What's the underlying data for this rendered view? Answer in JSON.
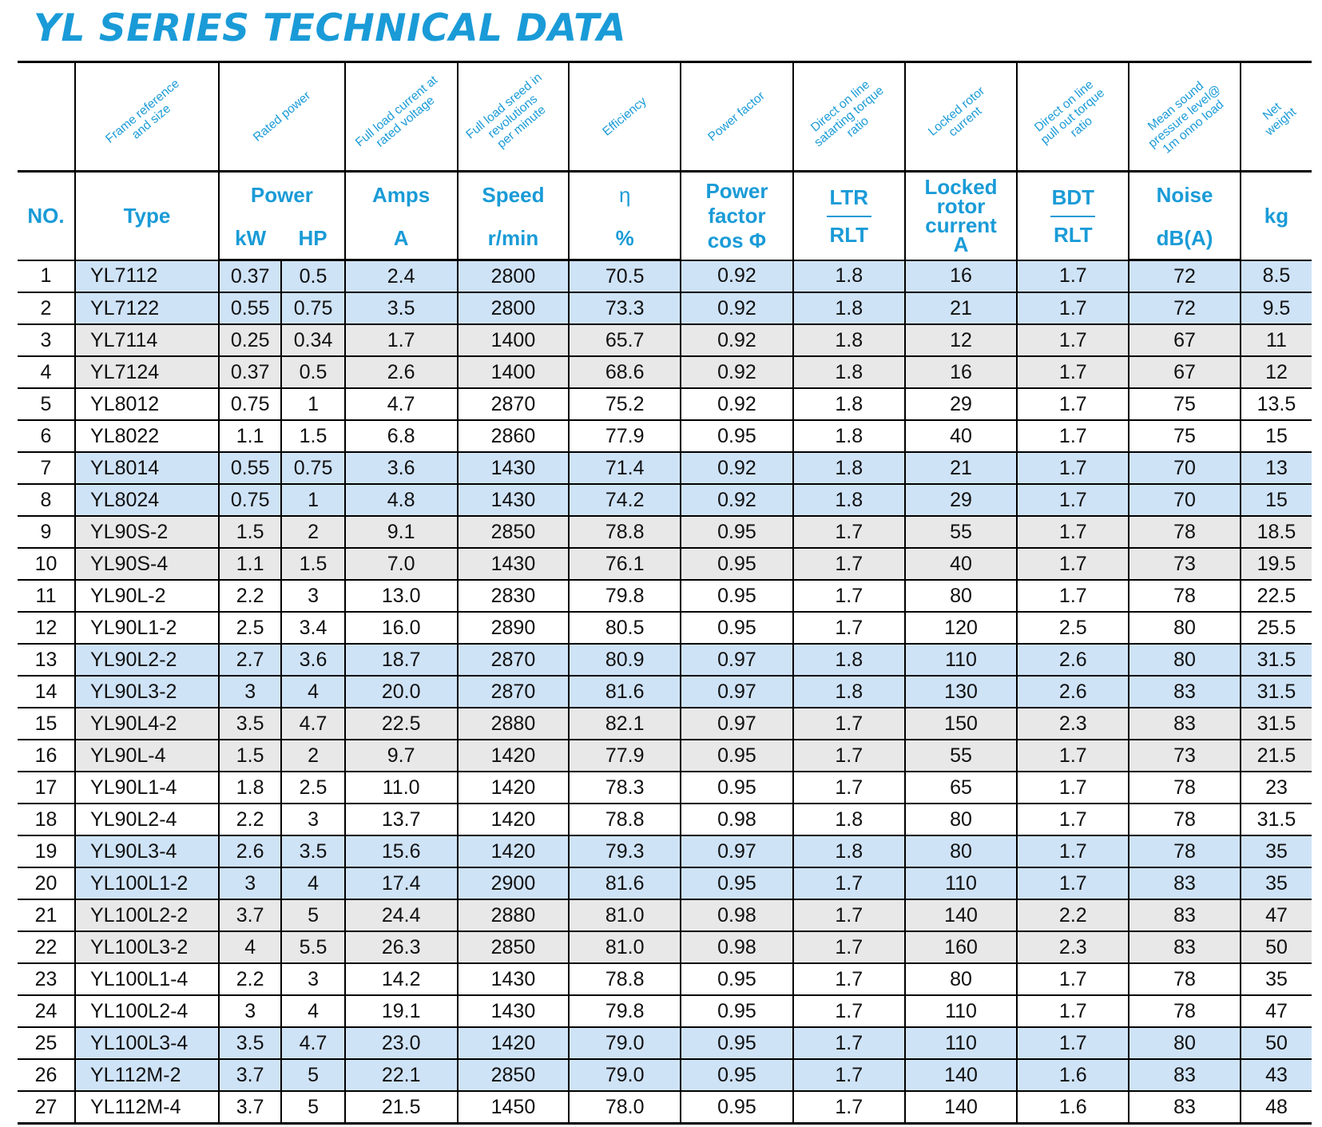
{
  "title": "YL SERIES TECHNICAL DATA",
  "header": {
    "rotated": [
      "",
      "Frame reference\nand size",
      "Rated power",
      "Full load current at\nrated voltage",
      "Full load sreed in\nrevolutions\nper minute",
      "Efficiency",
      "Power factor",
      "Direct on line\nsatarting torque\nratio",
      "Locked rotor\ncurrent",
      "Direct on line\npull out torque\nratio",
      "Mean sound\npressure level@\n1m onno load",
      "Net\nweight"
    ],
    "no": "NO.",
    "type": "Type",
    "power": "Power",
    "kw": "kW",
    "hp": "HP",
    "amps": "Amps",
    "amps_unit": "A",
    "speed": "Speed",
    "speed_unit": "r/min",
    "eta": "η",
    "eta_unit": "%",
    "pf_1": "Power",
    "pf_2": "factor",
    "pf_3": "cos Φ",
    "ltr": "LTR",
    "ltr_rlt": "RLT",
    "lrc_1": "Locked",
    "lrc_2": "rotor",
    "lrc_3": "current",
    "lrc_4": "A",
    "bdt": "BDT",
    "bdt_rlt": "RLT",
    "noise": "Noise",
    "noise_unit": "dB(A)",
    "kg": "kg"
  },
  "row_colors": {
    "blue": "#cfe3f7",
    "gray": "#e8e8e8",
    "white": "#ffffff"
  },
  "rows": [
    {
      "no": "1",
      "type": "YL7112",
      "kw": "0.37",
      "hp": "0.5",
      "amps": "2.4",
      "speed": "2800",
      "eta": "70.5",
      "pf": "0.92",
      "ltr": "1.8",
      "lrc": "16",
      "bdt": "1.7",
      "noise": "72",
      "kg": "8.5",
      "shade": "blue"
    },
    {
      "no": "2",
      "type": "YL7122",
      "kw": "0.55",
      "hp": "0.75",
      "amps": "3.5",
      "speed": "2800",
      "eta": "73.3",
      "pf": "0.92",
      "ltr": "1.8",
      "lrc": "21",
      "bdt": "1.7",
      "noise": "72",
      "kg": "9.5",
      "shade": "blue"
    },
    {
      "no": "3",
      "type": "YL7114",
      "kw": "0.25",
      "hp": "0.34",
      "amps": "1.7",
      "speed": "1400",
      "eta": "65.7",
      "pf": "0.92",
      "ltr": "1.8",
      "lrc": "12",
      "bdt": "1.7",
      "noise": "67",
      "kg": "11",
      "shade": "gray"
    },
    {
      "no": "4",
      "type": "YL7124",
      "kw": "0.37",
      "hp": "0.5",
      "amps": "2.6",
      "speed": "1400",
      "eta": "68.6",
      "pf": "0.92",
      "ltr": "1.8",
      "lrc": "16",
      "bdt": "1.7",
      "noise": "67",
      "kg": "12",
      "shade": "gray"
    },
    {
      "no": "5",
      "type": "YL8012",
      "kw": "0.75",
      "hp": "1",
      "amps": "4.7",
      "speed": "2870",
      "eta": "75.2",
      "pf": "0.92",
      "ltr": "1.8",
      "lrc": "29",
      "bdt": "1.7",
      "noise": "75",
      "kg": "13.5",
      "shade": "white"
    },
    {
      "no": "6",
      "type": "YL8022",
      "kw": "1.1",
      "hp": "1.5",
      "amps": "6.8",
      "speed": "2860",
      "eta": "77.9",
      "pf": "0.95",
      "ltr": "1.8",
      "lrc": "40",
      "bdt": "1.7",
      "noise": "75",
      "kg": "15",
      "shade": "white"
    },
    {
      "no": "7",
      "type": "YL8014",
      "kw": "0.55",
      "hp": "0.75",
      "amps": "3.6",
      "speed": "1430",
      "eta": "71.4",
      "pf": "0.92",
      "ltr": "1.8",
      "lrc": "21",
      "bdt": "1.7",
      "noise": "70",
      "kg": "13",
      "shade": "blue"
    },
    {
      "no": "8",
      "type": "YL8024",
      "kw": "0.75",
      "hp": "1",
      "amps": "4.8",
      "speed": "1430",
      "eta": "74.2",
      "pf": "0.92",
      "ltr": "1.8",
      "lrc": "29",
      "bdt": "1.7",
      "noise": "70",
      "kg": "15",
      "shade": "blue"
    },
    {
      "no": "9",
      "type": "YL90S-2",
      "kw": "1.5",
      "hp": "2",
      "amps": "9.1",
      "speed": "2850",
      "eta": "78.8",
      "pf": "0.95",
      "ltr": "1.7",
      "lrc": "55",
      "bdt": "1.7",
      "noise": "78",
      "kg": "18.5",
      "shade": "gray"
    },
    {
      "no": "10",
      "type": "YL90S-4",
      "kw": "1.1",
      "hp": "1.5",
      "amps": "7.0",
      "speed": "1430",
      "eta": "76.1",
      "pf": "0.95",
      "ltr": "1.7",
      "lrc": "40",
      "bdt": "1.7",
      "noise": "73",
      "kg": "19.5",
      "shade": "gray"
    },
    {
      "no": "11",
      "type": "YL90L-2",
      "kw": "2.2",
      "hp": "3",
      "amps": "13.0",
      "speed": "2830",
      "eta": "79.8",
      "pf": "0.95",
      "ltr": "1.7",
      "lrc": "80",
      "bdt": "1.7",
      "noise": "78",
      "kg": "22.5",
      "shade": "white"
    },
    {
      "no": "12",
      "type": "YL90L1-2",
      "kw": "2.5",
      "hp": "3.4",
      "amps": "16.0",
      "speed": "2890",
      "eta": "80.5",
      "pf": "0.95",
      "ltr": "1.7",
      "lrc": "120",
      "bdt": "2.5",
      "noise": "80",
      "kg": "25.5",
      "shade": "white"
    },
    {
      "no": "13",
      "type": "YL90L2-2",
      "kw": "2.7",
      "hp": "3.6",
      "amps": "18.7",
      "speed": "2870",
      "eta": "80.9",
      "pf": "0.97",
      "ltr": "1.8",
      "lrc": "110",
      "bdt": "2.6",
      "noise": "80",
      "kg": "31.5",
      "shade": "blue"
    },
    {
      "no": "14",
      "type": "YL90L3-2",
      "kw": "3",
      "hp": "4",
      "amps": "20.0",
      "speed": "2870",
      "eta": "81.6",
      "pf": "0.97",
      "ltr": "1.8",
      "lrc": "130",
      "bdt": "2.6",
      "noise": "83",
      "kg": "31.5",
      "shade": "blue"
    },
    {
      "no": "15",
      "type": "YL90L4-2",
      "kw": "3.5",
      "hp": "4.7",
      "amps": "22.5",
      "speed": "2880",
      "eta": "82.1",
      "pf": "0.97",
      "ltr": "1.7",
      "lrc": "150",
      "bdt": "2.3",
      "noise": "83",
      "kg": "31.5",
      "shade": "gray"
    },
    {
      "no": "16",
      "type": "YL90L-4",
      "kw": "1.5",
      "hp": "2",
      "amps": "9.7",
      "speed": "1420",
      "eta": "77.9",
      "pf": "0.95",
      "ltr": "1.7",
      "lrc": "55",
      "bdt": "1.7",
      "noise": "73",
      "kg": "21.5",
      "shade": "gray"
    },
    {
      "no": "17",
      "type": "YL90L1-4",
      "kw": "1.8",
      "hp": "2.5",
      "amps": "11.0",
      "speed": "1420",
      "eta": "78.3",
      "pf": "0.95",
      "ltr": "1.7",
      "lrc": "65",
      "bdt": "1.7",
      "noise": "78",
      "kg": "23",
      "shade": "white"
    },
    {
      "no": "18",
      "type": "YL90L2-4",
      "kw": "2.2",
      "hp": "3",
      "amps": "13.7",
      "speed": "1420",
      "eta": "78.8",
      "pf": "0.98",
      "ltr": "1.8",
      "lrc": "80",
      "bdt": "1.7",
      "noise": "78",
      "kg": "31.5",
      "shade": "white"
    },
    {
      "no": "19",
      "type": "YL90L3-4",
      "kw": "2.6",
      "hp": "3.5",
      "amps": "15.6",
      "speed": "1420",
      "eta": "79.3",
      "pf": "0.97",
      "ltr": "1.8",
      "lrc": "80",
      "bdt": "1.7",
      "noise": "78",
      "kg": "35",
      "shade": "blue"
    },
    {
      "no": "20",
      "type": "YL100L1-2",
      "kw": "3",
      "hp": "4",
      "amps": "17.4",
      "speed": "2900",
      "eta": "81.6",
      "pf": "0.95",
      "ltr": "1.7",
      "lrc": "110",
      "bdt": "1.7",
      "noise": "83",
      "kg": "35",
      "shade": "blue"
    },
    {
      "no": "21",
      "type": "YL100L2-2",
      "kw": "3.7",
      "hp": "5",
      "amps": "24.4",
      "speed": "2880",
      "eta": "81.0",
      "pf": "0.98",
      "ltr": "1.7",
      "lrc": "140",
      "bdt": "2.2",
      "noise": "83",
      "kg": "47",
      "shade": "gray"
    },
    {
      "no": "22",
      "type": "YL100L3-2",
      "kw": "4",
      "hp": "5.5",
      "amps": "26.3",
      "speed": "2850",
      "eta": "81.0",
      "pf": "0.98",
      "ltr": "1.7",
      "lrc": "160",
      "bdt": "2.3",
      "noise": "83",
      "kg": "50",
      "shade": "gray"
    },
    {
      "no": "23",
      "type": "YL100L1-4",
      "kw": "2.2",
      "hp": "3",
      "amps": "14.2",
      "speed": "1430",
      "eta": "78.8",
      "pf": "0.95",
      "ltr": "1.7",
      "lrc": "80",
      "bdt": "1.7",
      "noise": "78",
      "kg": "35",
      "shade": "white"
    },
    {
      "no": "24",
      "type": "YL100L2-4",
      "kw": "3",
      "hp": "4",
      "amps": "19.1",
      "speed": "1430",
      "eta": "79.8",
      "pf": "0.95",
      "ltr": "1.7",
      "lrc": "110",
      "bdt": "1.7",
      "noise": "78",
      "kg": "47",
      "shade": "white"
    },
    {
      "no": "25",
      "type": "YL100L3-4",
      "kw": "3.5",
      "hp": "4.7",
      "amps": "23.0",
      "speed": "1420",
      "eta": "79.0",
      "pf": "0.95",
      "ltr": "1.7",
      "lrc": "110",
      "bdt": "1.7",
      "noise": "80",
      "kg": "50",
      "shade": "blue"
    },
    {
      "no": "26",
      "type": "YL112M-2",
      "kw": "3.7",
      "hp": "5",
      "amps": "22.1",
      "speed": "2850",
      "eta": "79.0",
      "pf": "0.95",
      "ltr": "1.7",
      "lrc": "140",
      "bdt": "1.6",
      "noise": "83",
      "kg": "43",
      "shade": "blue"
    },
    {
      "no": "27",
      "type": "YL112M-4",
      "kw": "3.7",
      "hp": "5",
      "amps": "21.5",
      "speed": "1450",
      "eta": "78.0",
      "pf": "0.95",
      "ltr": "1.7",
      "lrc": "140",
      "bdt": "1.6",
      "noise": "83",
      "kg": "48",
      "shade": "white"
    }
  ]
}
